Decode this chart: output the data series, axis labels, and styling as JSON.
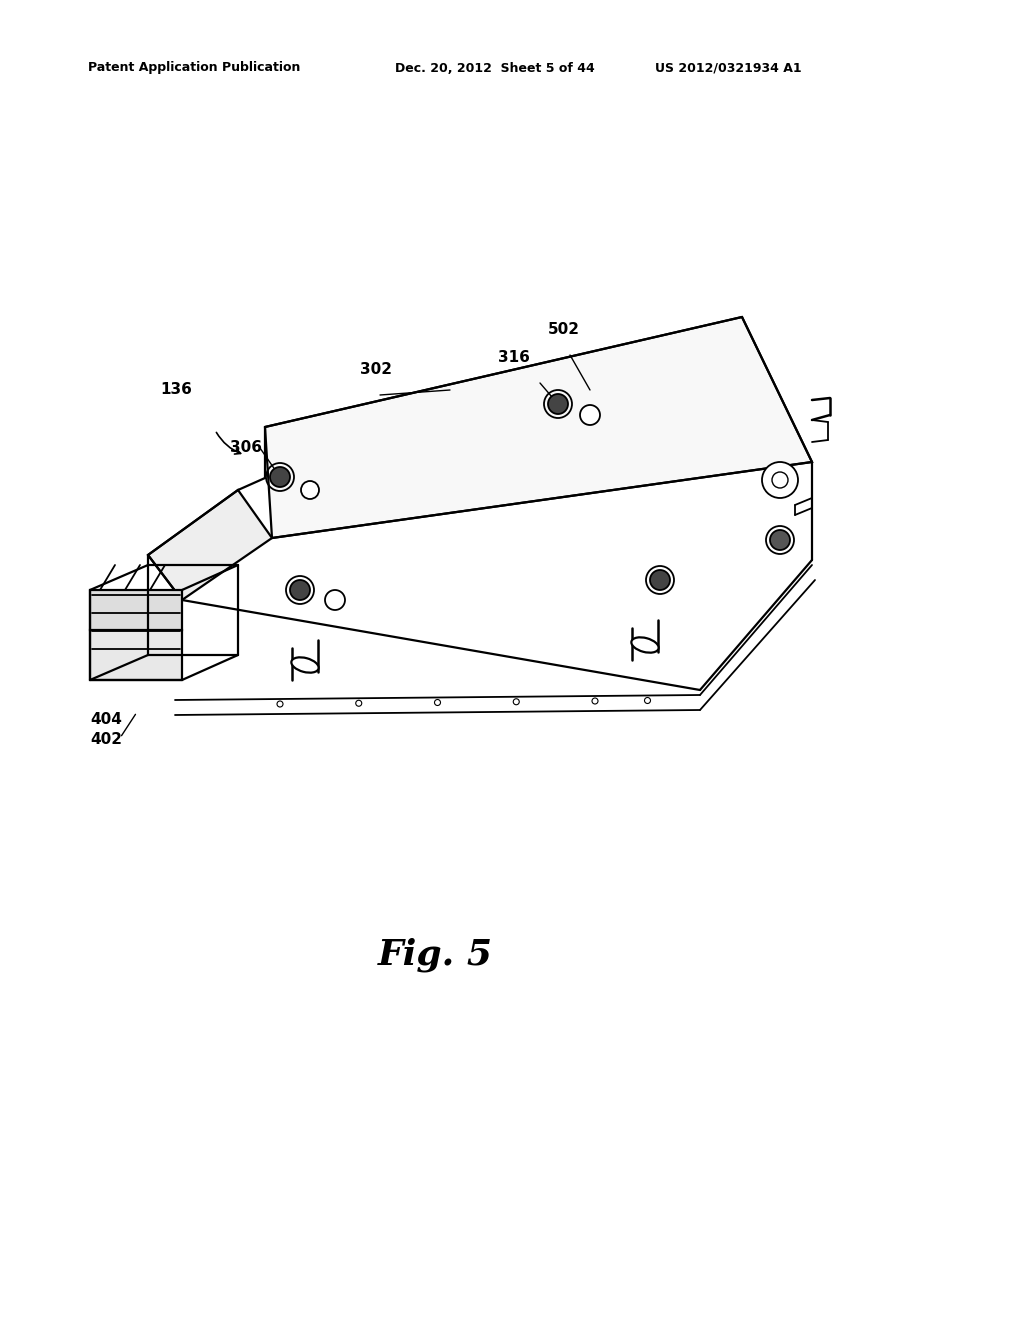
{
  "bg_color": "#ffffff",
  "lc": "#000000",
  "lw": 1.3,
  "header_left": "Patent Application Publication",
  "header_mid": "Dec. 20, 2012  Sheet 5 of 44",
  "header_right": "US 2012/0321934 A1",
  "fig_label": "Fig. 5"
}
